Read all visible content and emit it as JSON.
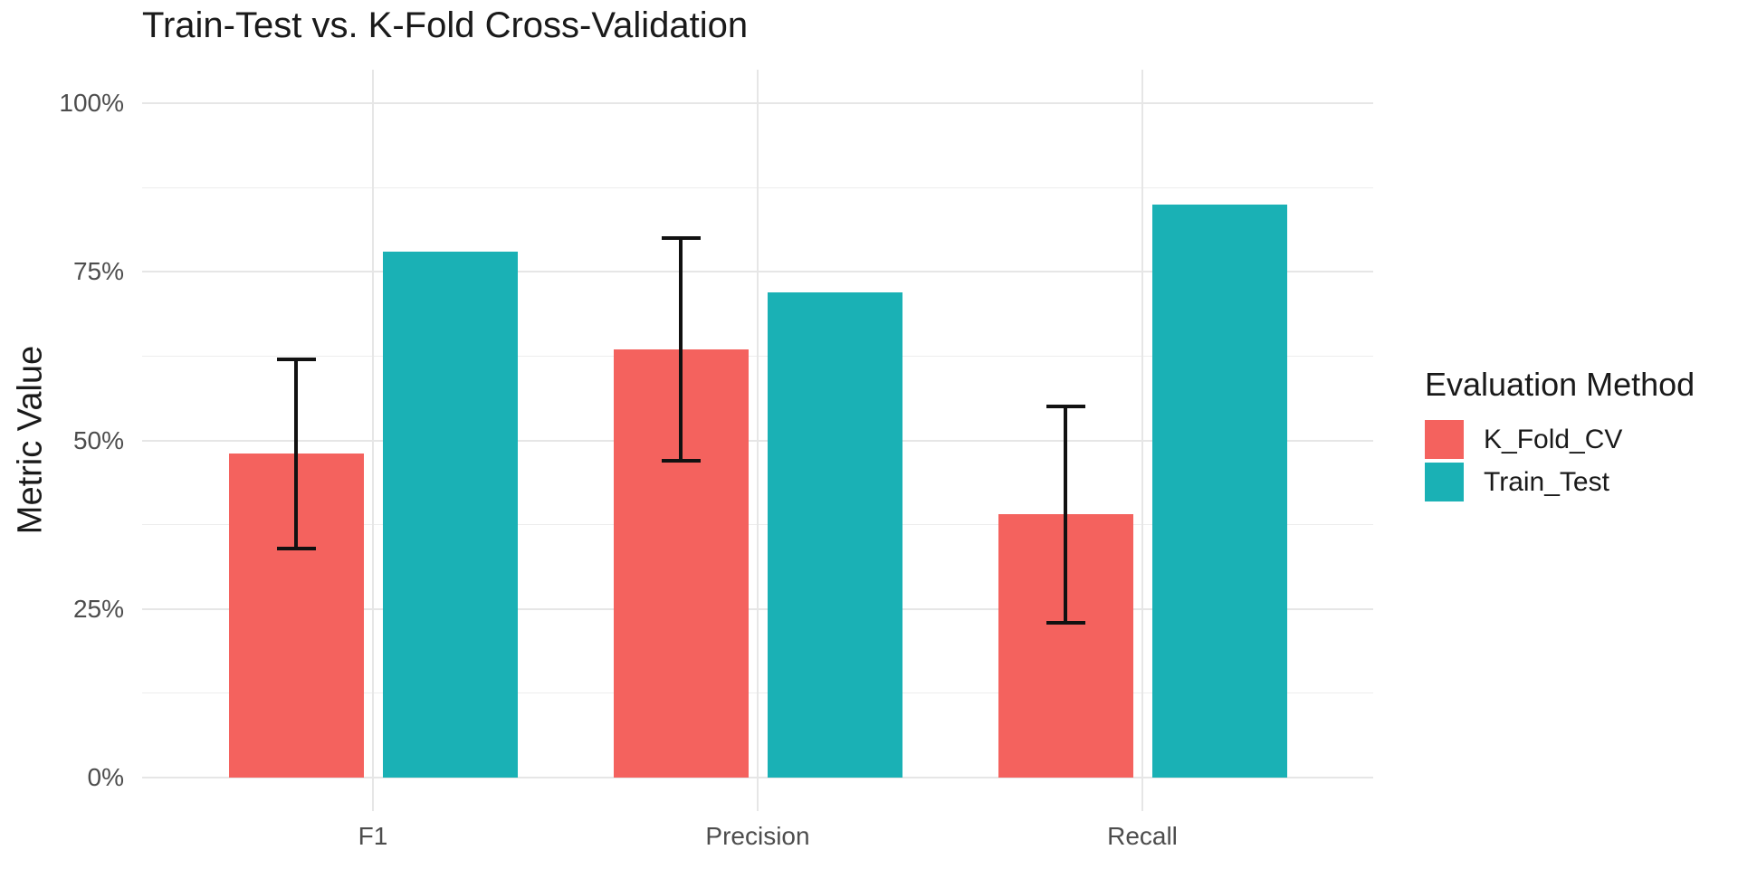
{
  "chart_data": {
    "type": "bar",
    "title": "Train-Test vs. K-Fold Cross-Validation",
    "xlabel": "",
    "ylabel": "Metric Value",
    "categories": [
      "F1",
      "Precision",
      "Recall"
    ],
    "series": [
      {
        "name": "K_Fold_CV",
        "color": "#F4625E",
        "values": [
          48,
          63.5,
          39
        ],
        "error_low": [
          34,
          47,
          23
        ],
        "error_high": [
          62,
          80,
          55
        ]
      },
      {
        "name": "Train_Test",
        "color": "#1AB1B5",
        "values": [
          78,
          72,
          85
        ],
        "error_low": null,
        "error_high": null
      }
    ],
    "y_ticks": [
      "0%",
      "25%",
      "50%",
      "75%",
      "100%"
    ],
    "y_tick_values": [
      0,
      25,
      50,
      75,
      100
    ],
    "y_minor_values": [
      12.5,
      37.5,
      62.5,
      87.5
    ],
    "ylim": [
      0,
      100
    ],
    "unit": "percent",
    "grid": true,
    "legend": {
      "title": "Evaluation Method",
      "position": "right",
      "entries": [
        "K_Fold_CV",
        "Train_Test"
      ]
    },
    "colors": {
      "gridline": "#E6E6E6",
      "tick_text": "#4D4D4D",
      "text": "#1A1A1A",
      "error_bar": "#111111",
      "background": "#FFFFFF"
    }
  }
}
